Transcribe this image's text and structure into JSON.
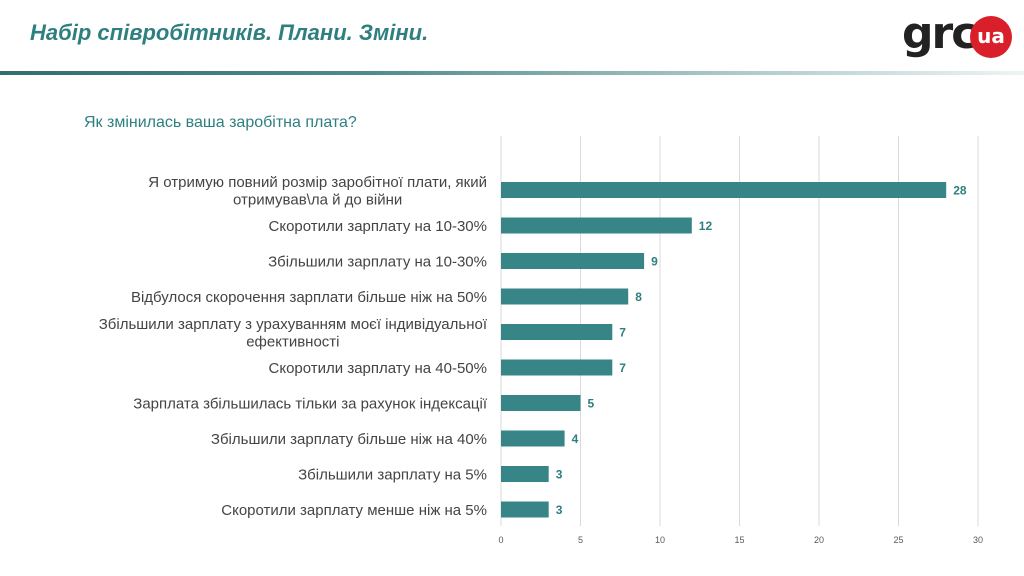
{
  "header": {
    "title": "Набір співробітників. Плани. Зміни.",
    "logo_text": "grc",
    "logo_badge": "ua"
  },
  "colors": {
    "accent": "#2f7f80",
    "bar": "#378586",
    "logo_red": "#d9202a"
  },
  "chart_data": {
    "type": "bar",
    "orientation": "horizontal",
    "title": "Як змінилась ваша заробітна плата?",
    "categories": [
      [
        "Я отримую повний розмір заробітної плати, який",
        "отримував\\ла й до війни"
      ],
      [
        "Скоротили зарплату на 10-30%"
      ],
      [
        "Збільшили зарплату на 10-30%"
      ],
      [
        "Відбулося скорочення зарплати більше ніж на 50%"
      ],
      [
        "Збільшили зарплату з урахуванням моєї індивідуальної",
        "ефективності"
      ],
      [
        "Скоротили зарплату на 40-50%"
      ],
      [
        "Зарплата збільшилась тільки за рахунок індексації"
      ],
      [
        "Збільшили зарплату більше ніж на 40%"
      ],
      [
        "Збільшили зарплату на 5%"
      ],
      [
        "Скоротили зарплату менше ніж на 5%"
      ]
    ],
    "values": [
      28,
      12,
      9,
      8,
      7,
      7,
      5,
      4,
      3,
      3
    ],
    "x_ticks": [
      0,
      5,
      10,
      15,
      20,
      25,
      30
    ],
    "xlim": [
      0,
      30
    ],
    "grid": "vertical",
    "data_labels": true
  }
}
